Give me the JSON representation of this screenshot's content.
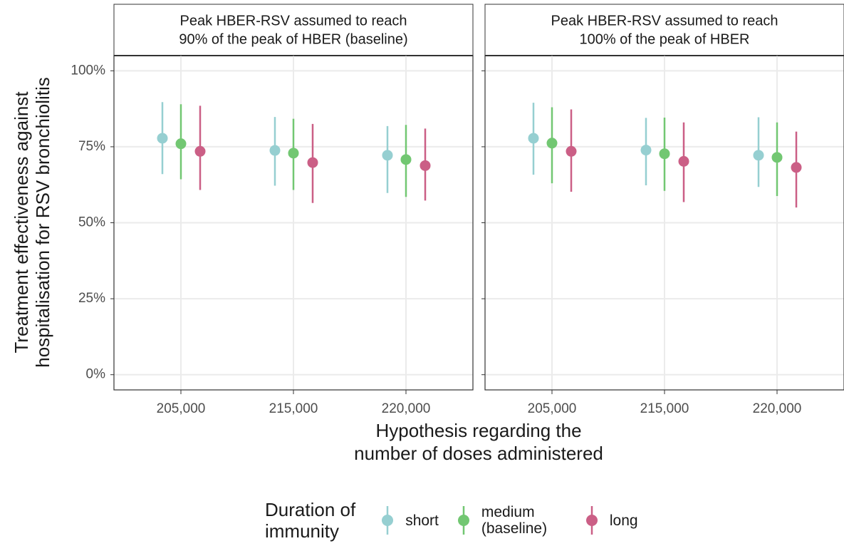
{
  "figure": {
    "y_label": [
      "Treatment effectiveness against",
      "hospitalisation for RSV bronchiolitis"
    ],
    "x_label": [
      "Hypothesis regarding the",
      "number of doses administered"
    ],
    "legend": {
      "title": [
        "Duration of",
        "immunity"
      ],
      "entries": [
        {
          "name": "short",
          "color": "#96cfd1"
        },
        {
          "name": "medium (baseline)",
          "color": "#72c772"
        },
        {
          "name": "long",
          "color": "#cb5f86"
        }
      ]
    }
  },
  "chart_data": [
    {
      "type": "pointrange",
      "title": [
        "Peak HBER-RSV assumed to reach",
        "90% of the peak of HBER (baseline)"
      ],
      "categories": [
        "205,000",
        "215,000",
        "220,000"
      ],
      "ylim": [
        -5,
        105
      ],
      "yticks": [
        {
          "value": 0,
          "label": "0%"
        },
        {
          "value": 25,
          "label": "25%"
        },
        {
          "value": 50,
          "label": "50%"
        },
        {
          "value": 75,
          "label": "75%"
        },
        {
          "value": 100,
          "label": "100%"
        }
      ],
      "grid": true,
      "series": [
        {
          "color": "#96cfd1",
          "values": [
            77.8,
            73.8,
            72.2
          ],
          "lower": [
            66,
            62.2,
            59.8
          ],
          "upper": [
            89.7,
            84.8,
            81.8
          ]
        },
        {
          "color": "#72c772",
          "values": [
            76,
            72.9,
            70.8
          ],
          "lower": [
            64.3,
            60.8,
            58.5
          ],
          "upper": [
            89,
            84.2,
            82.2
          ]
        },
        {
          "color": "#cb5f86",
          "values": [
            73.5,
            69.8,
            68.8
          ],
          "lower": [
            60.8,
            56.5,
            57.3
          ],
          "upper": [
            88.5,
            82.5,
            81
          ]
        }
      ]
    },
    {
      "type": "pointrange",
      "title": [
        "Peak HBER-RSV assumed to reach",
        "100% of the peak of HBER"
      ],
      "categories": [
        "205,000",
        "215,000",
        "220,000"
      ],
      "ylim": [
        -5,
        105
      ],
      "yticks": [
        {
          "value": 0,
          "label": "0%"
        },
        {
          "value": 25,
          "label": "25%"
        },
        {
          "value": 50,
          "label": "50%"
        },
        {
          "value": 75,
          "label": "75%"
        },
        {
          "value": 100,
          "label": "100%"
        }
      ],
      "grid": true,
      "series": [
        {
          "color": "#96cfd1",
          "values": [
            77.8,
            73.9,
            72.2
          ],
          "lower": [
            65.8,
            62.3,
            61.8
          ],
          "upper": [
            89.5,
            84.5,
            84.7
          ]
        },
        {
          "color": "#72c772",
          "values": [
            76.2,
            72.7,
            71.5
          ],
          "lower": [
            63,
            60.5,
            58.8
          ],
          "upper": [
            88,
            84.6,
            83
          ]
        },
        {
          "color": "#cb5f86",
          "values": [
            73.5,
            70.2,
            68.2
          ],
          "lower": [
            60.2,
            56.8,
            55
          ],
          "upper": [
            87.3,
            83,
            80
          ]
        }
      ]
    }
  ]
}
